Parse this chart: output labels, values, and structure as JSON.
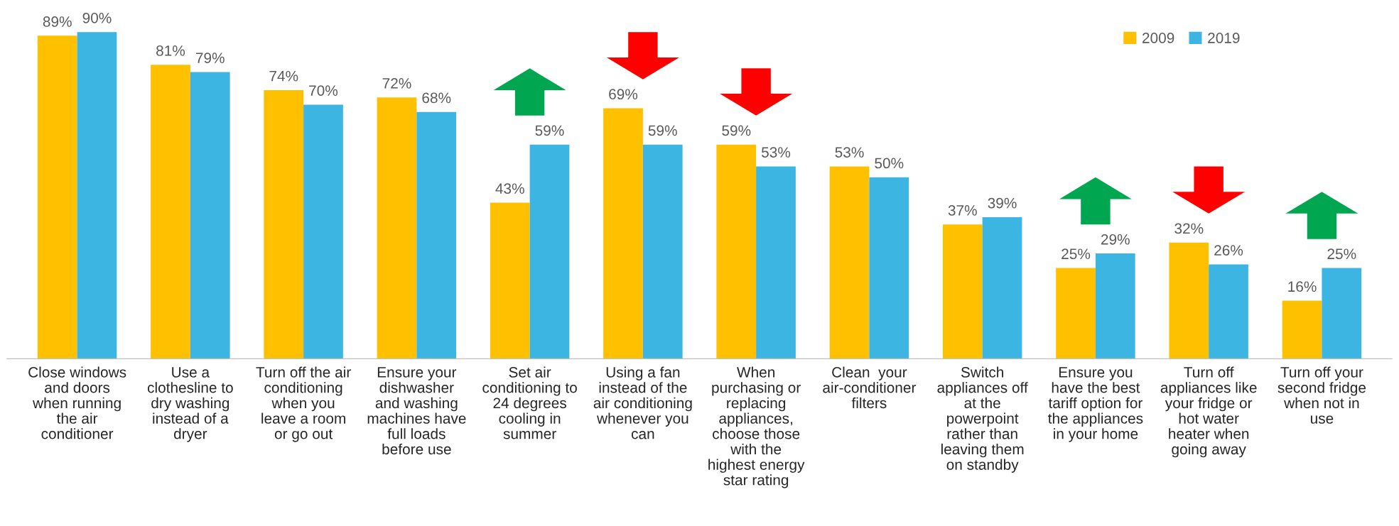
{
  "chart_data": {
    "type": "bar",
    "categories": [
      "Close windows\nand doors\nwhen running\nthe air\nconditioner",
      "Use a\nclothesline to\ndry washing\ninstead of a\ndryer",
      "Turn off the air\nconditioning\nwhen you\nleave a room\nor go out",
      "Ensure your\ndishwasher\nand washing\nmachines have\nfull loads\nbefore use",
      "Set air\nconditioning to\n24 degrees\ncooling in\nsummer",
      "Using a fan\ninstead of the\nair conditioning\nwhenever you\ncan",
      "When\npurchasing or\nreplacing\nappliances,\nchoose those\nwith the\nhighest energy\nstar rating",
      "Clean  your\nair-conditioner\nfilters",
      "Switch\nappliances off\nat the\npowerpoint\nrather than\nleaving them\non standby",
      "Ensure you\nhave the best\ntariff option for\nthe appliances\nin your home",
      "Turn off\nappliances like\nyour fridge or\nhot water\nheater when\ngoing away",
      "Turn off your\nsecond fridge\nwhen not in\nuse"
    ],
    "series": [
      {
        "name": "2009",
        "color": "#ffc000",
        "values": [
          89,
          81,
          74,
          72,
          43,
          69,
          59,
          53,
          37,
          25,
          32,
          16
        ],
        "value_labels": [
          "89%",
          "81%",
          "74%",
          "72%",
          "43%",
          "69%",
          "59%",
          "53%",
          "37%",
          "25%",
          "32%",
          "16%"
        ]
      },
      {
        "name": "2019",
        "color": "#3db5e3",
        "values": [
          90,
          79,
          70,
          68,
          59,
          59,
          53,
          50,
          39,
          29,
          26,
          25
        ],
        "value_labels": [
          "90%",
          "79%",
          "70%",
          "68%",
          "59%",
          "59%",
          "53%",
          "50%",
          "39%",
          "29%",
          "26%",
          "25%"
        ]
      }
    ],
    "legend": "top right",
    "grid": false,
    "tick_labels": "x"
  }
}
